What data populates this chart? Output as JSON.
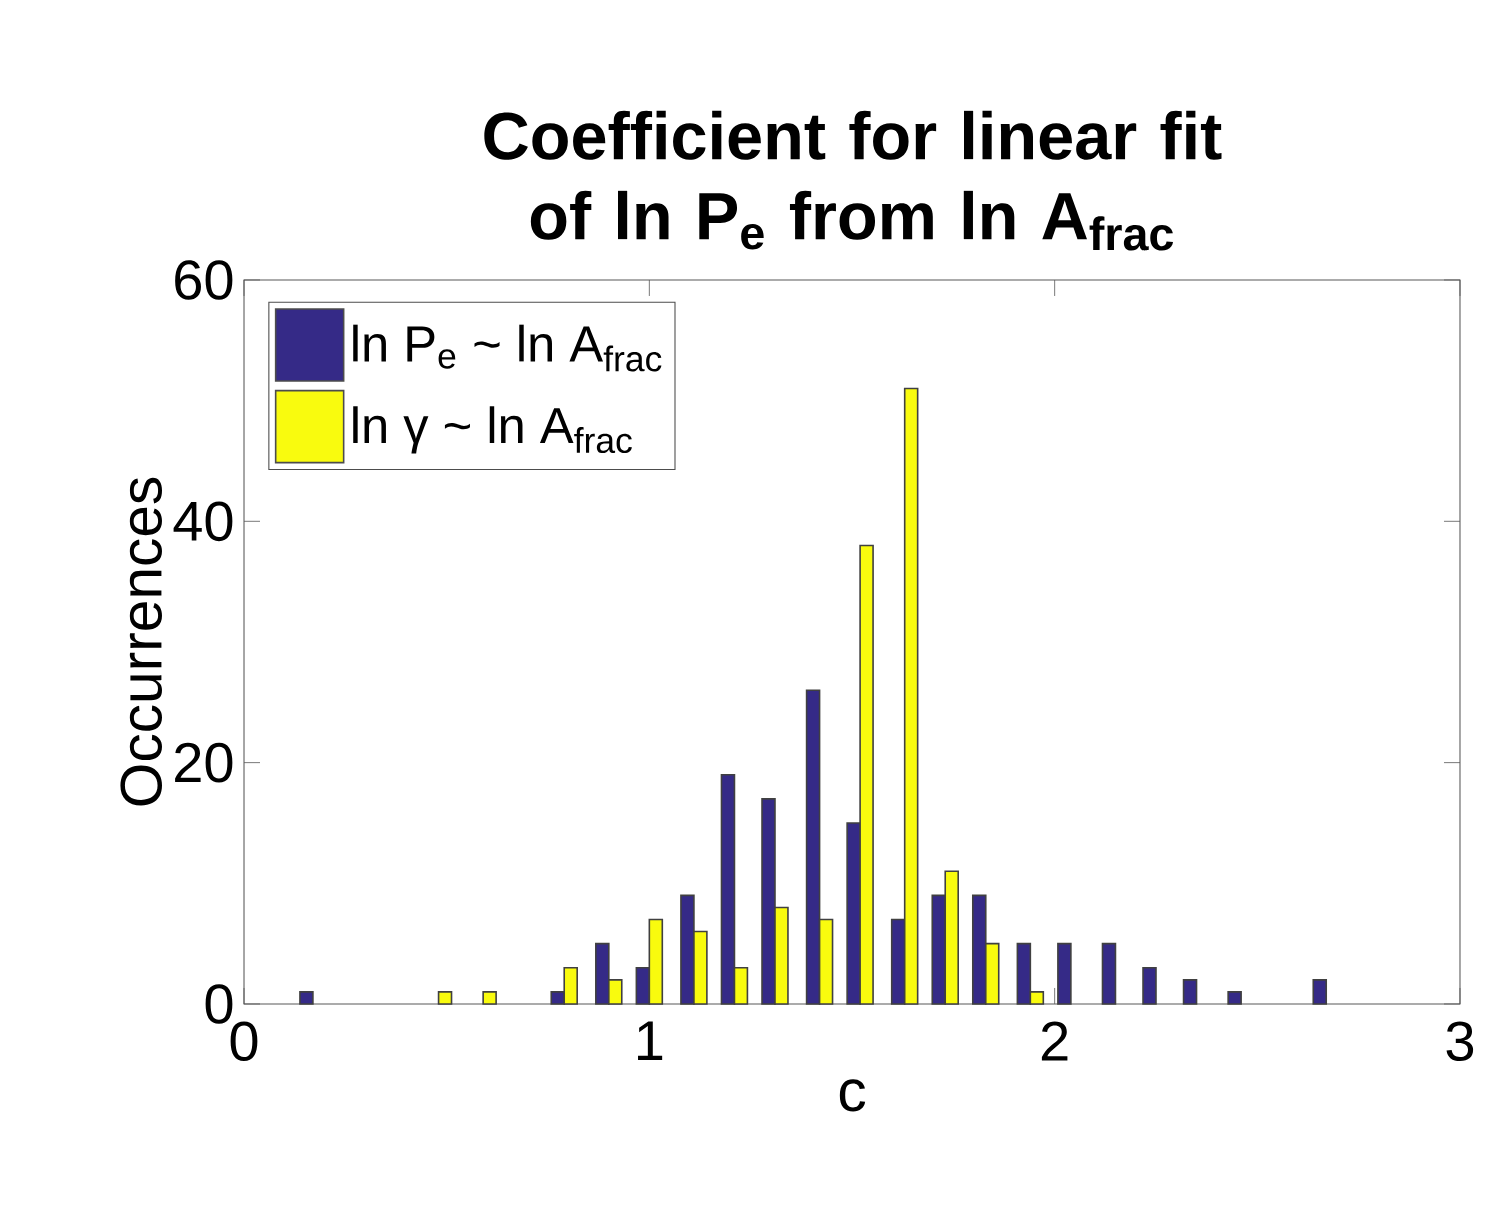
{
  "chart_data": {
    "type": "bar",
    "title": "Coefficient for linear fit of ln P$_{e}$ from ln A$_{frac}$",
    "xlabel": "c",
    "ylabel": "Occurrences",
    "x": [
      0.17,
      0.27,
      0.38,
      0.48,
      0.59,
      0.69,
      0.79,
      0.9,
      1.0,
      1.11,
      1.21,
      1.31,
      1.42,
      1.52,
      1.63,
      1.73,
      1.83,
      1.94,
      2.04,
      2.15,
      2.25,
      2.35,
      2.46,
      2.56,
      2.67
    ],
    "series": [
      {
        "name": "ln P$_{e}$ ~ ln A$_{frac}$",
        "color": "#352a87",
        "values": [
          1,
          0,
          0,
          0,
          0,
          0,
          1,
          5,
          3,
          9,
          19,
          17,
          26,
          15,
          7,
          9,
          9,
          5,
          5,
          5,
          3,
          2,
          1,
          0,
          2
        ]
      },
      {
        "name": "ln γ ~ ln A$_{frac}$",
        "color": "#f9fb0e",
        "values": [
          0,
          0,
          0,
          1,
          1,
          0,
          3,
          2,
          7,
          6,
          3,
          8,
          7,
          38,
          51,
          11,
          5,
          1,
          0,
          0,
          0,
          0,
          0,
          0,
          0
        ]
      }
    ],
    "xlim": [
      0,
      3
    ],
    "xticks": [
      0,
      1,
      2,
      3
    ],
    "ylim": [
      0,
      60
    ],
    "yticks": [
      0,
      20,
      40,
      60
    ],
    "legend": "top left"
  }
}
